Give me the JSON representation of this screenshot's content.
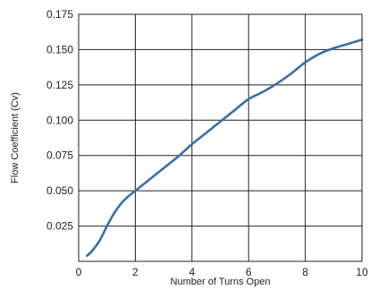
{
  "chart_data": {
    "type": "line",
    "title": "",
    "xlabel": "Number of Turns Open",
    "ylabel": "Flow Coefficient (Cv)",
    "xlim": [
      0,
      10
    ],
    "ylim": [
      0,
      0.175
    ],
    "x_ticks": [
      "0",
      "2",
      "4",
      "6",
      "8",
      "10"
    ],
    "y_ticks": [
      "0.025",
      "0.050",
      "0.075",
      "0.100",
      "0.125",
      "0.150",
      "0.175"
    ],
    "grid": true,
    "legend": "none",
    "series": [
      {
        "color": "#3a6ea8",
        "x": [
          0.3,
          0.5,
          0.75,
          1.0,
          1.25,
          1.5,
          1.75,
          2.0,
          2.5,
          3.0,
          3.5,
          4.0,
          4.5,
          5.0,
          5.5,
          6.0,
          6.5,
          7.0,
          7.5,
          8.0,
          8.5,
          9.0,
          9.5,
          10.0
        ],
        "y": [
          0.004,
          0.008,
          0.015,
          0.025,
          0.034,
          0.041,
          0.046,
          0.05,
          0.058,
          0.066,
          0.074,
          0.083,
          0.091,
          0.099,
          0.107,
          0.115,
          0.12,
          0.126,
          0.133,
          0.141,
          0.147,
          0.151,
          0.154,
          0.157
        ]
      }
    ]
  }
}
